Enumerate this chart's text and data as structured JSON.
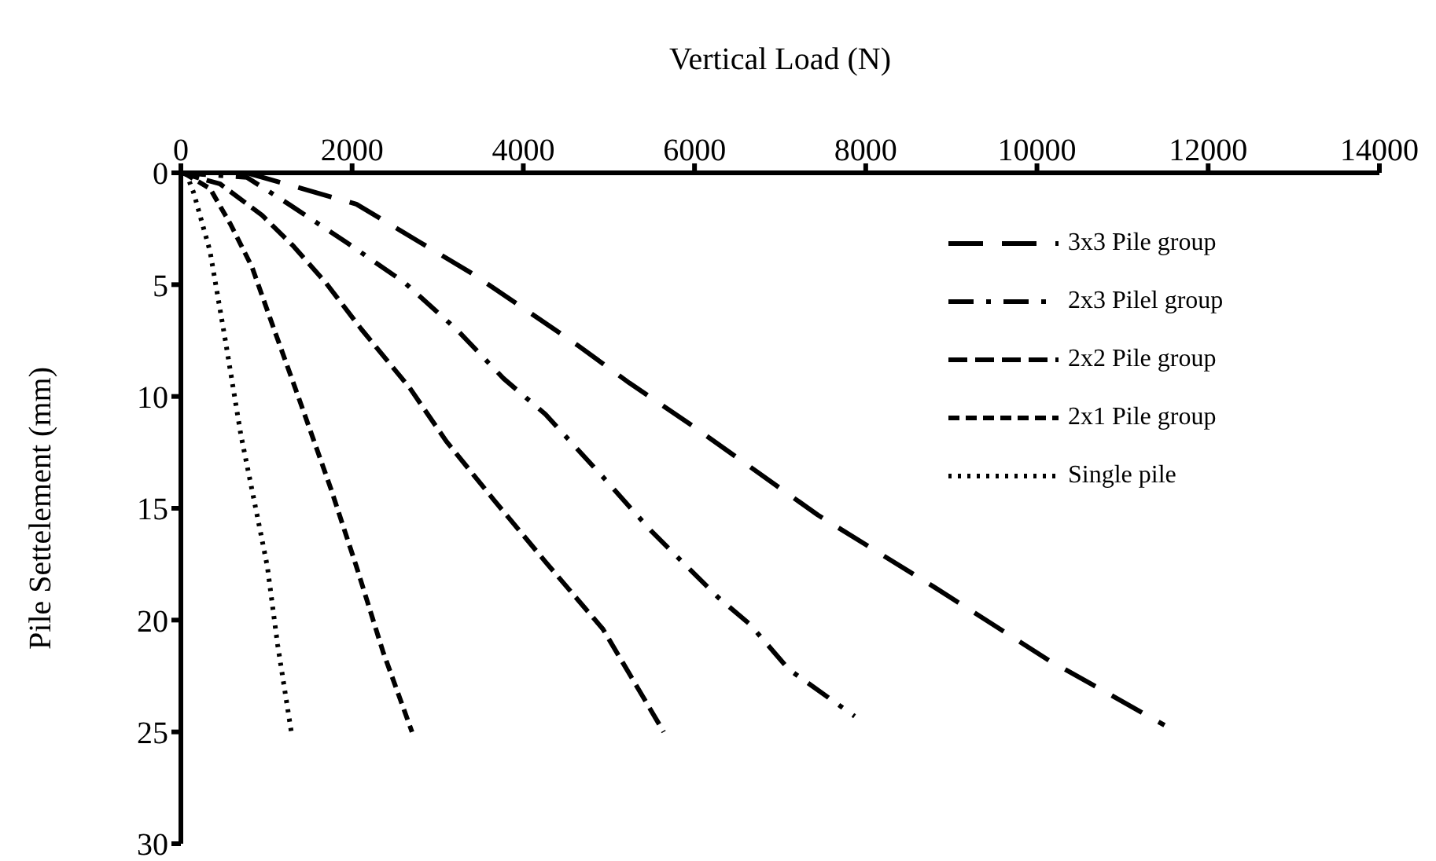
{
  "chart_data": {
    "type": "line",
    "xlabel": "Vertical Load (N)",
    "ylabel": "Pile Settelement (mm)",
    "xlim": [
      0,
      14000
    ],
    "xticks": [
      0,
      2000,
      4000,
      6000,
      8000,
      10000,
      12000,
      14000
    ],
    "ylim": [
      30,
      0
    ],
    "yticks": [
      0,
      5,
      10,
      15,
      20,
      25,
      30
    ],
    "grid": false,
    "legend": "top right",
    "marker": "none",
    "series": [
      {
        "name": "3x3 Pile group",
        "color": "#000000",
        "line_style": "dashed",
        "x": [
          770,
          1320,
          2050,
          2790,
          3400,
          4020,
          4630,
          5240,
          5970,
          7440,
          8790,
          10140,
          11490
        ],
        "values": [
          0,
          0.6,
          1.4,
          3.1,
          4.5,
          6.1,
          7.7,
          9.4,
          11.3,
          15.3,
          18.5,
          21.8,
          24.7
        ]
      },
      {
        "name": "2x3 Pilel group",
        "color": "#000000",
        "line_style": "dashed",
        "x": [
          0,
          770,
          1260,
          1930,
          2610,
          3220,
          3770,
          4260,
          4930,
          5490,
          6280,
          6650,
          7100,
          7870
        ],
        "values": [
          0,
          0.2,
          1.4,
          3.1,
          4.9,
          7.0,
          9.2,
          10.8,
          13.6,
          16.0,
          19.0,
          20.2,
          22.2,
          24.3
        ]
      },
      {
        "name": "2x2 Pile group",
        "color": "#000000",
        "line_style": "dashed",
        "x": [
          0,
          460,
          950,
          1320,
          1690,
          2110,
          2670,
          3100,
          3650,
          4260,
          4930,
          5640
        ],
        "values": [
          0,
          0.5,
          1.9,
          3.3,
          4.9,
          7.0,
          9.6,
          12.0,
          14.6,
          17.4,
          20.4,
          25
        ]
      },
      {
        "name": "2x1 Pile group",
        "color": "#000000",
        "line_style": "dashed",
        "x": [
          30,
          340,
          580,
          830,
          1070,
          1380,
          1750,
          2050,
          2360,
          2700
        ],
        "values": [
          0,
          0.7,
          2.3,
          4.2,
          6.8,
          10.1,
          14.1,
          17.6,
          21.4,
          25
        ]
      },
      {
        "name": "Single pile",
        "color": "#000000",
        "line_style": "dotted",
        "x": [
          60,
          150,
          340,
          520,
          700,
          890,
          1010,
          1130,
          1290
        ],
        "values": [
          0,
          0.9,
          3.5,
          7.5,
          11.7,
          15.3,
          17.6,
          21.1,
          25
        ]
      }
    ]
  }
}
